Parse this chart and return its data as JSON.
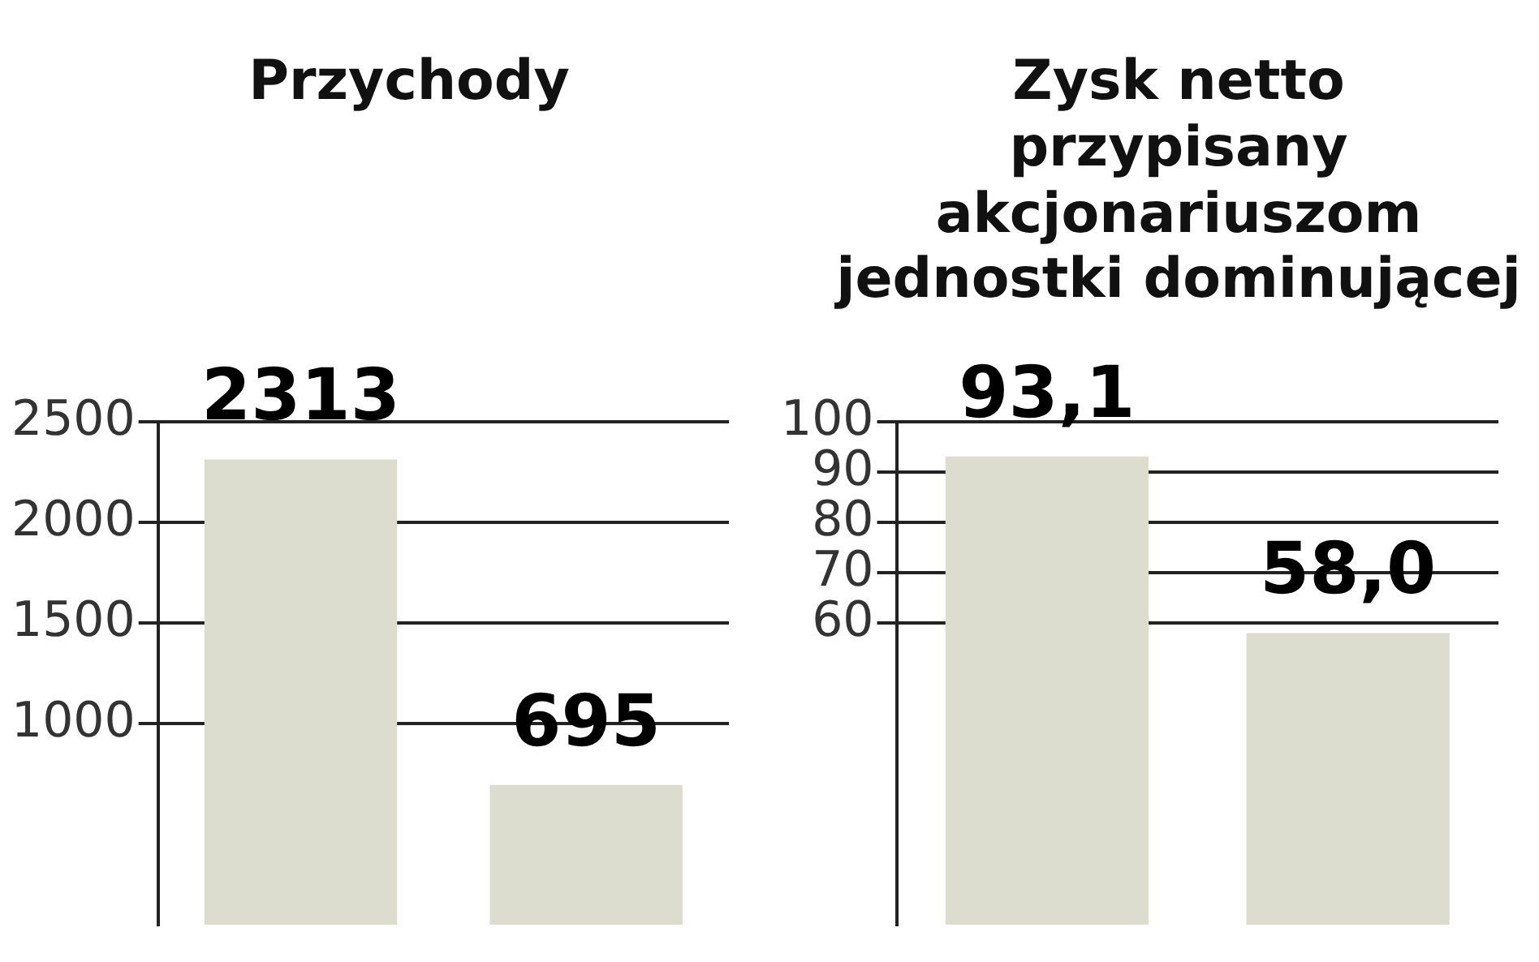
{
  "chart_data": [
    {
      "type": "bar",
      "title": "Przychody",
      "categories": [
        null,
        null
      ],
      "values": [
        2313,
        695
      ],
      "color": "#dcdccf",
      "value_labels": [
        "2313",
        "695"
      ],
      "ylim": [
        0,
        2500
      ],
      "yticks": [
        1000,
        1500,
        2000,
        2500
      ],
      "grid": "y",
      "legend": false
    },
    {
      "type": "bar",
      "title": "Zysk netto przypisany akcjonariuszom jednostki dominującej",
      "categories": [
        null,
        null
      ],
      "values": [
        93.1,
        58.0
      ],
      "color": "#dcdccf",
      "value_labels": [
        "93,1",
        "58,0"
      ],
      "ylim": [
        0,
        100
      ],
      "yticks": [
        60,
        70,
        80,
        90,
        100
      ],
      "grid": "y",
      "legend": false
    }
  ]
}
